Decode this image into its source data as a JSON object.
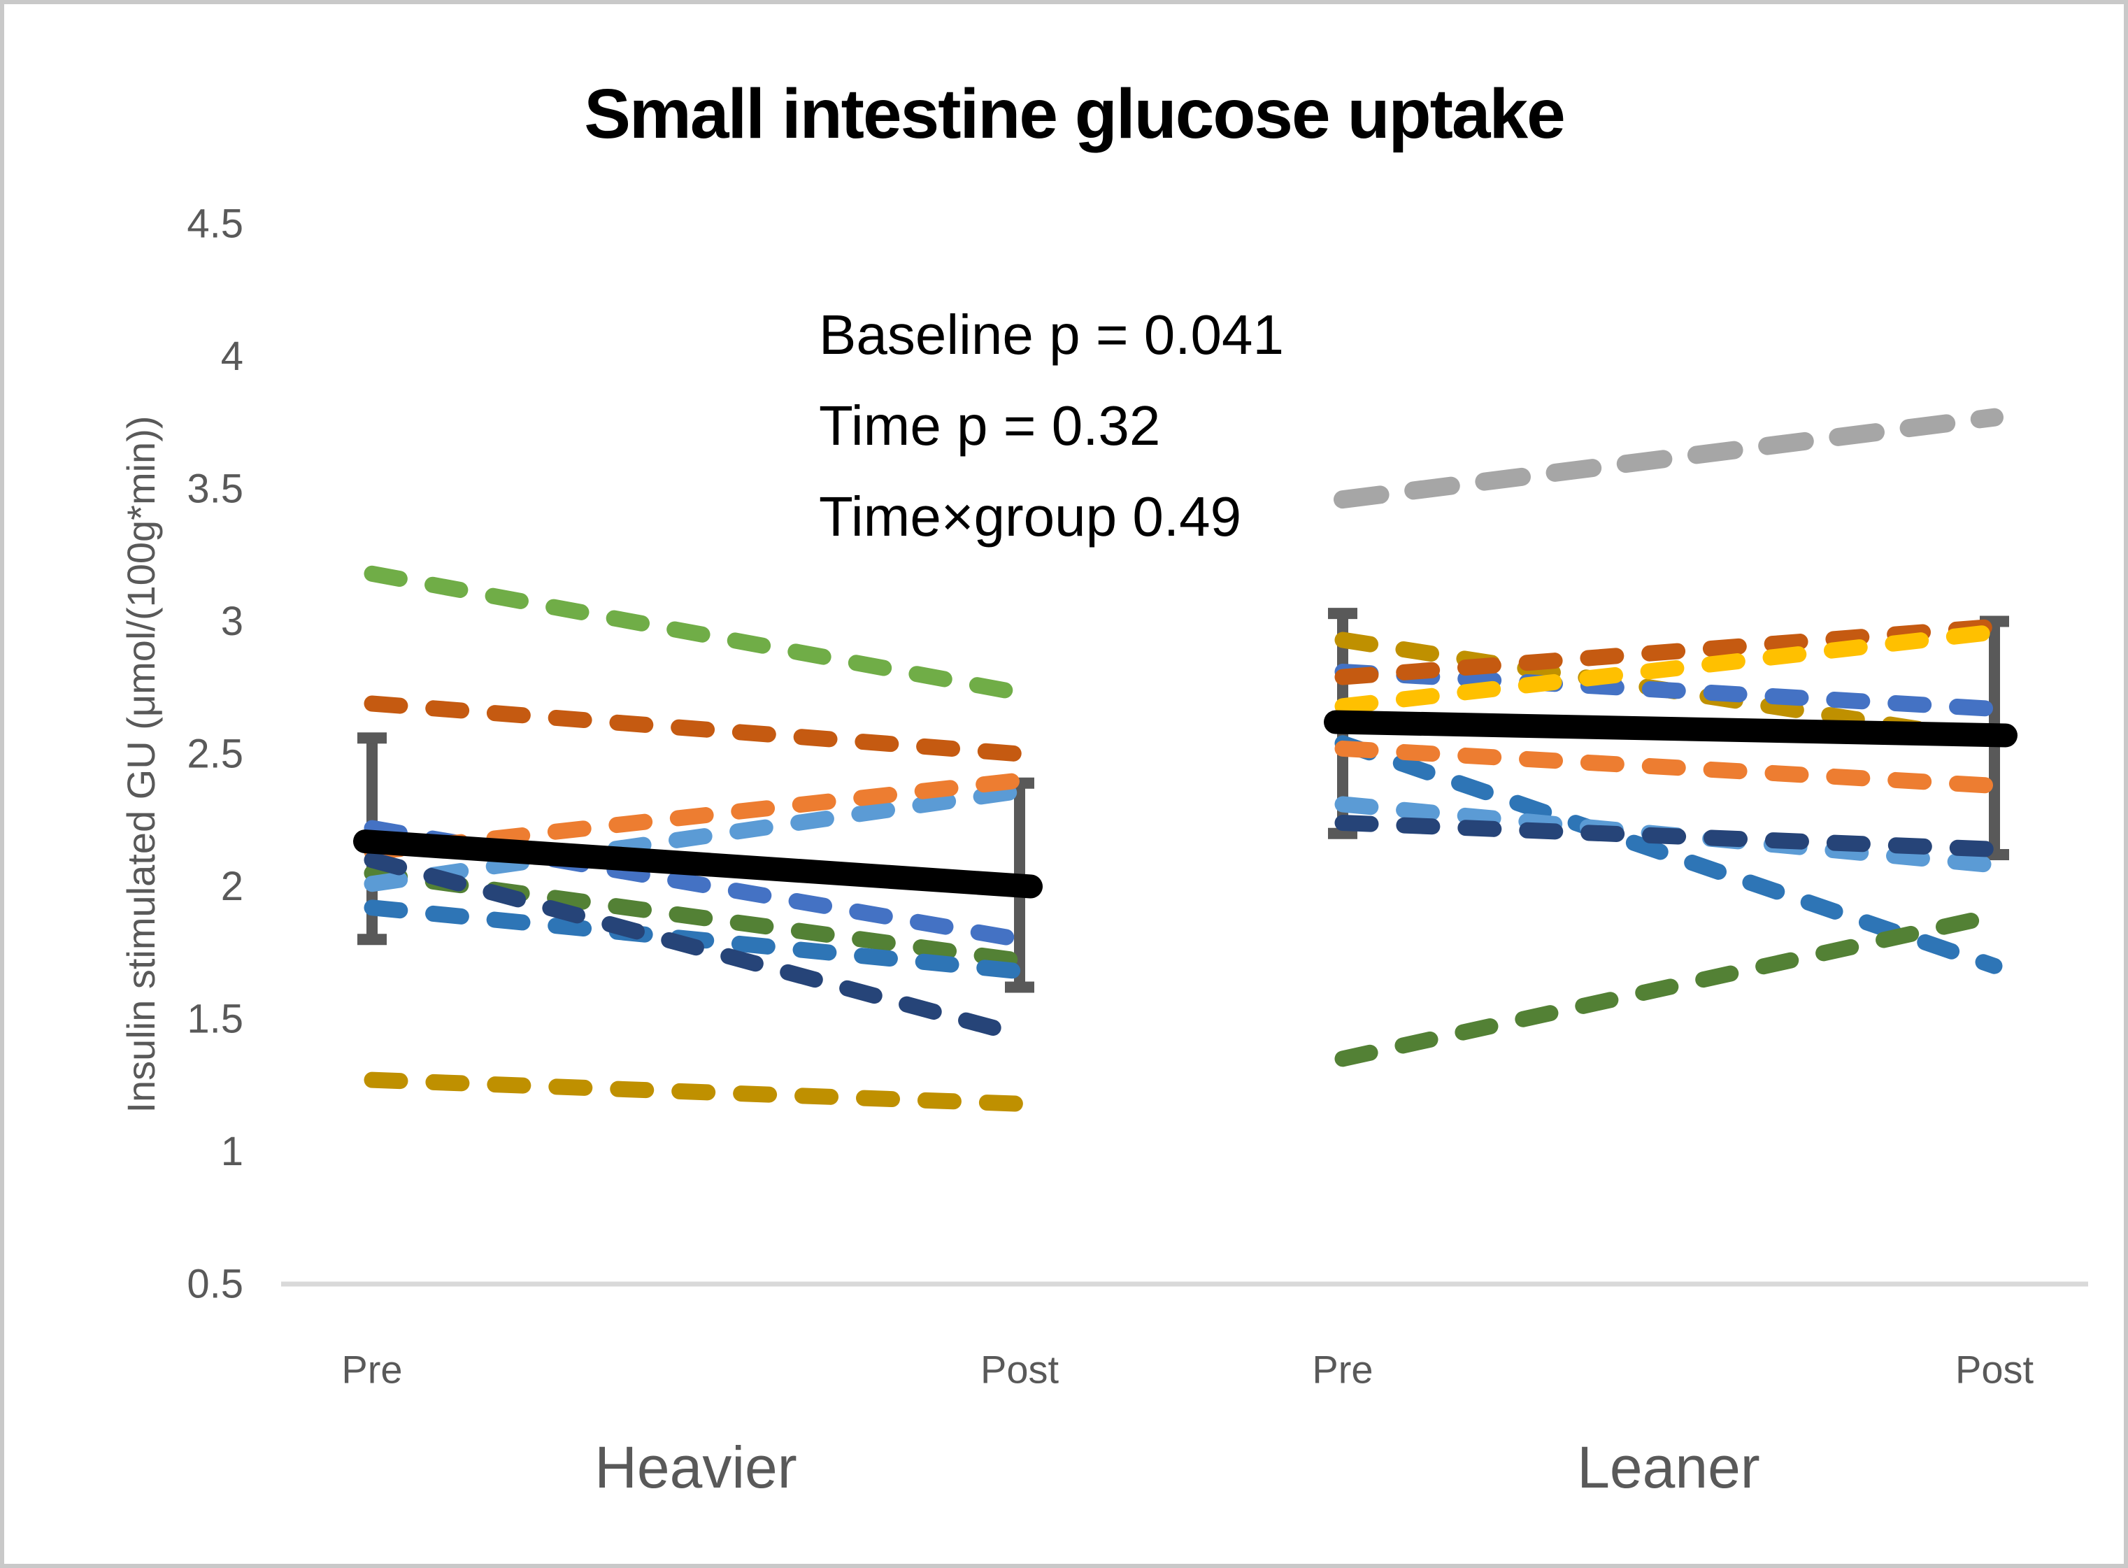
{
  "title": "Small intestine glucose uptake",
  "annotations": {
    "baseline": "Baseline p = 0.041",
    "time": "Time p = 0.32",
    "interaction": "Time×group 0.49"
  },
  "y_axis": {
    "title": "Insulin stimulated GU (μmol/(100g*min))",
    "tick_labels": [
      "4.5",
      "4",
      "3.5",
      "3",
      "2.5",
      "2",
      "1.5",
      "1",
      "0.5"
    ],
    "label_color": "#595959"
  },
  "chart_data": {
    "type": "line",
    "title": "Small intestine glucose uptake",
    "ylabel": "Insulin stimulated GU (μmol/(100g*min))",
    "ylim": [
      0.5,
      4.5
    ],
    "ytick_step": 0.5,
    "grid": "single light-gray baseline at y=0.5 only",
    "x_categories": [
      "Pre",
      "Post"
    ],
    "annotations": [
      "Baseline p = 0.041",
      "Time p = 0.32",
      "Time×group 0.49"
    ],
    "legend": "none",
    "style_notes": {
      "individual_lines": "thick rounded dashes, one color per subject",
      "mean_line": "solid thick black",
      "error_bars": "dark gray capped bars at Pre and Post",
      "error_bar_color": "#595959",
      "baseline_color": "#D9D9D9"
    },
    "groups": [
      {
        "label": "Heavier",
        "mean": {
          "color": "#000000",
          "pre": 2.17,
          "post": 2.0
        },
        "error_bars": {
          "pre": [
            1.8,
            2.56
          ],
          "post": [
            1.62,
            2.39
          ]
        },
        "individuals": [
          {
            "name": "subject-green",
            "color": "#70AD47",
            "pre": 3.18,
            "post": 2.73
          },
          {
            "name": "subject-rust",
            "color": "#C55A11",
            "pre": 2.69,
            "post": 2.5
          },
          {
            "name": "subject-dark-green",
            "color": "#538135",
            "pre": 2.05,
            "post": 1.72
          },
          {
            "name": "subject-light-blue",
            "color": "#5B9BD5",
            "pre": 2.01,
            "post": 2.36
          },
          {
            "name": "subject-steel-blue",
            "color": "#2E75B6",
            "pre": 1.92,
            "post": 1.68
          },
          {
            "name": "subject-royal-blue",
            "color": "#4472C4",
            "pre": 2.22,
            "post": 1.8
          },
          {
            "name": "subject-orange",
            "color": "#ED7D31",
            "pre": 2.13,
            "post": 2.4
          },
          {
            "name": "subject-navy",
            "color": "#264478",
            "pre": 2.1,
            "post": 1.44
          },
          {
            "name": "subject-olive",
            "color": "#BF9000",
            "pre": 1.27,
            "post": 1.18
          }
        ]
      },
      {
        "label": "Leaner",
        "mean": {
          "color": "#000000",
          "pre": 2.62,
          "post": 2.57
        },
        "error_bars": {
          "pre": [
            2.2,
            3.03
          ],
          "post": [
            2.12,
            3.0
          ]
        },
        "individuals": [
          {
            "name": "subject-gray",
            "color": "#A6A6A6",
            "pre": 3.46,
            "post": 3.77
          },
          {
            "name": "subject-olive",
            "color": "#BF9000",
            "pre": 2.93,
            "post": 2.55
          },
          {
            "name": "subject-royal-blue",
            "color": "#4472C4",
            "pre": 2.81,
            "post": 2.67
          },
          {
            "name": "subject-rust",
            "color": "#C55A11",
            "pre": 2.79,
            "post": 2.98
          },
          {
            "name": "subject-yellow",
            "color": "#FFC000",
            "pre": 2.68,
            "post": 2.96
          },
          {
            "name": "subject-steel-blue",
            "color": "#2E75B6",
            "pre": 2.54,
            "post": 1.7
          },
          {
            "name": "subject-orange",
            "color": "#ED7D31",
            "pre": 2.52,
            "post": 2.38
          },
          {
            "name": "subject-light-blue",
            "color": "#5B9BD5",
            "pre": 2.31,
            "post": 2.08
          },
          {
            "name": "subject-navy",
            "color": "#264478",
            "pre": 2.24,
            "post": 2.14
          },
          {
            "name": "subject-dark-green",
            "color": "#538135",
            "pre": 1.35,
            "post": 1.89
          }
        ]
      }
    ]
  }
}
